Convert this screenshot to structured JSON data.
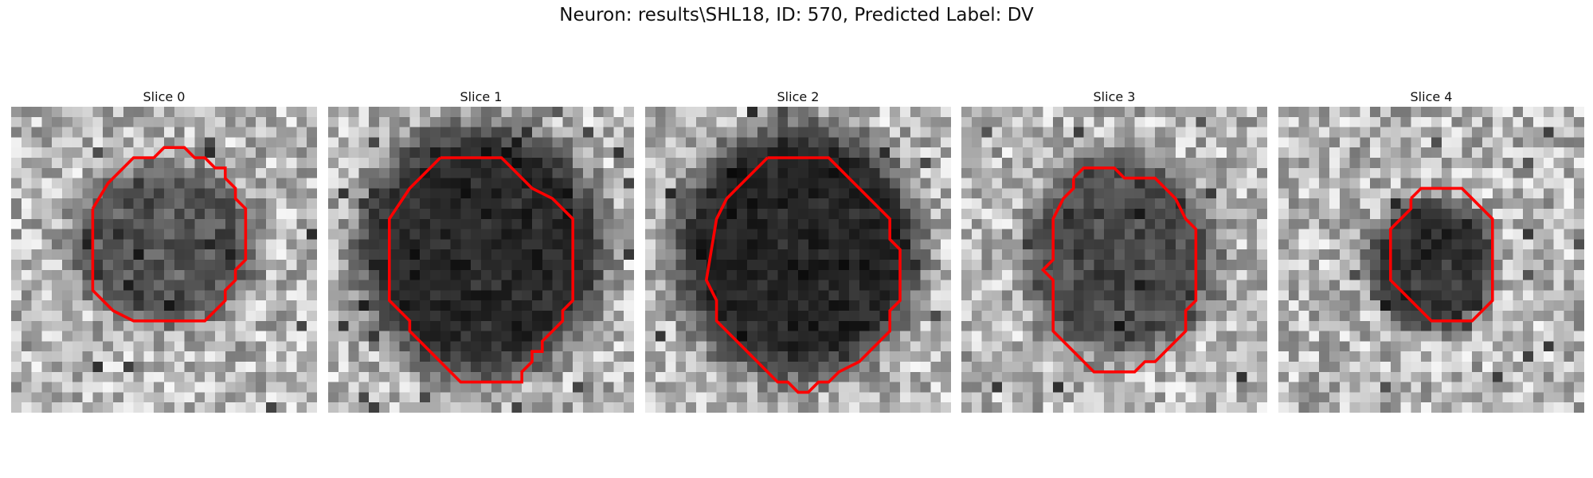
{
  "figure": {
    "title": "Neuron: results\\SHL18, ID: 570, Predicted Label: DV"
  },
  "slices": [
    {
      "title": "Slice 0",
      "seed": 11,
      "blob": [
        0.5,
        0.45,
        0.25,
        0.22
      ],
      "dark": 0.55
    },
    {
      "title": "Slice 1",
      "seed": 23,
      "blob": [
        0.5,
        0.47,
        0.33,
        0.34
      ],
      "dark": 0.78
    },
    {
      "title": "Slice 2",
      "seed": 37,
      "blob": [
        0.5,
        0.47,
        0.33,
        0.34
      ],
      "dark": 0.8
    },
    {
      "title": "Slice 3",
      "seed": 51,
      "blob": [
        0.52,
        0.49,
        0.26,
        0.27
      ],
      "dark": 0.6
    },
    {
      "title": "Slice 4",
      "seed": 67,
      "blob": [
        0.5,
        0.52,
        0.17,
        0.18
      ],
      "dark": 0.72
    }
  ],
  "colors": {
    "contour": "#ff0000",
    "background": "#ffffff"
  },
  "image": {
    "type": "grayscale pixel patch",
    "grid": 30
  }
}
